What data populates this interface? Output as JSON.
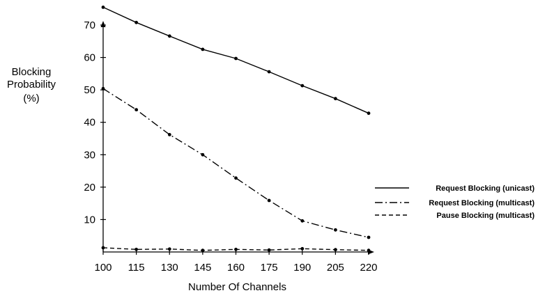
{
  "chart_data": {
    "type": "line",
    "x": [
      100,
      115,
      130,
      145,
      160,
      175,
      190,
      205,
      220
    ],
    "xlabel": "Number Of Channels",
    "ylabel": [
      "Blocking",
      "Probability",
      "(%)"
    ],
    "xlim": [
      100,
      220
    ],
    "ylim": [
      0,
      70
    ],
    "x_ticks": [
      "100",
      "115",
      "130",
      "145",
      "160",
      "175",
      "190",
      "205",
      "220"
    ],
    "y_ticks": [
      "10",
      "20",
      "30",
      "40",
      "50",
      "60",
      "70"
    ],
    "y_tick_values": [
      10,
      20,
      30,
      40,
      50,
      60,
      70
    ],
    "grid": false,
    "legend_position": "right",
    "series": [
      {
        "name": "Request Blocking (unicast)",
        "dash": "solid",
        "values": [
          75.5,
          70.8,
          66.6,
          62.5,
          59.7,
          55.6,
          51.3,
          47.3,
          42.8
        ]
      },
      {
        "name": "Request Blocking (multicast)",
        "dash": "dash-dot",
        "values": [
          50.4,
          43.9,
          36.2,
          30.0,
          22.8,
          15.9,
          9.6,
          6.8,
          4.5
        ]
      },
      {
        "name": "Pause Blocking (multicast)",
        "dash": "dashed",
        "values": [
          1.3,
          0.8,
          0.9,
          0.5,
          0.8,
          0.6,
          1.0,
          0.7,
          0.5
        ]
      }
    ]
  }
}
